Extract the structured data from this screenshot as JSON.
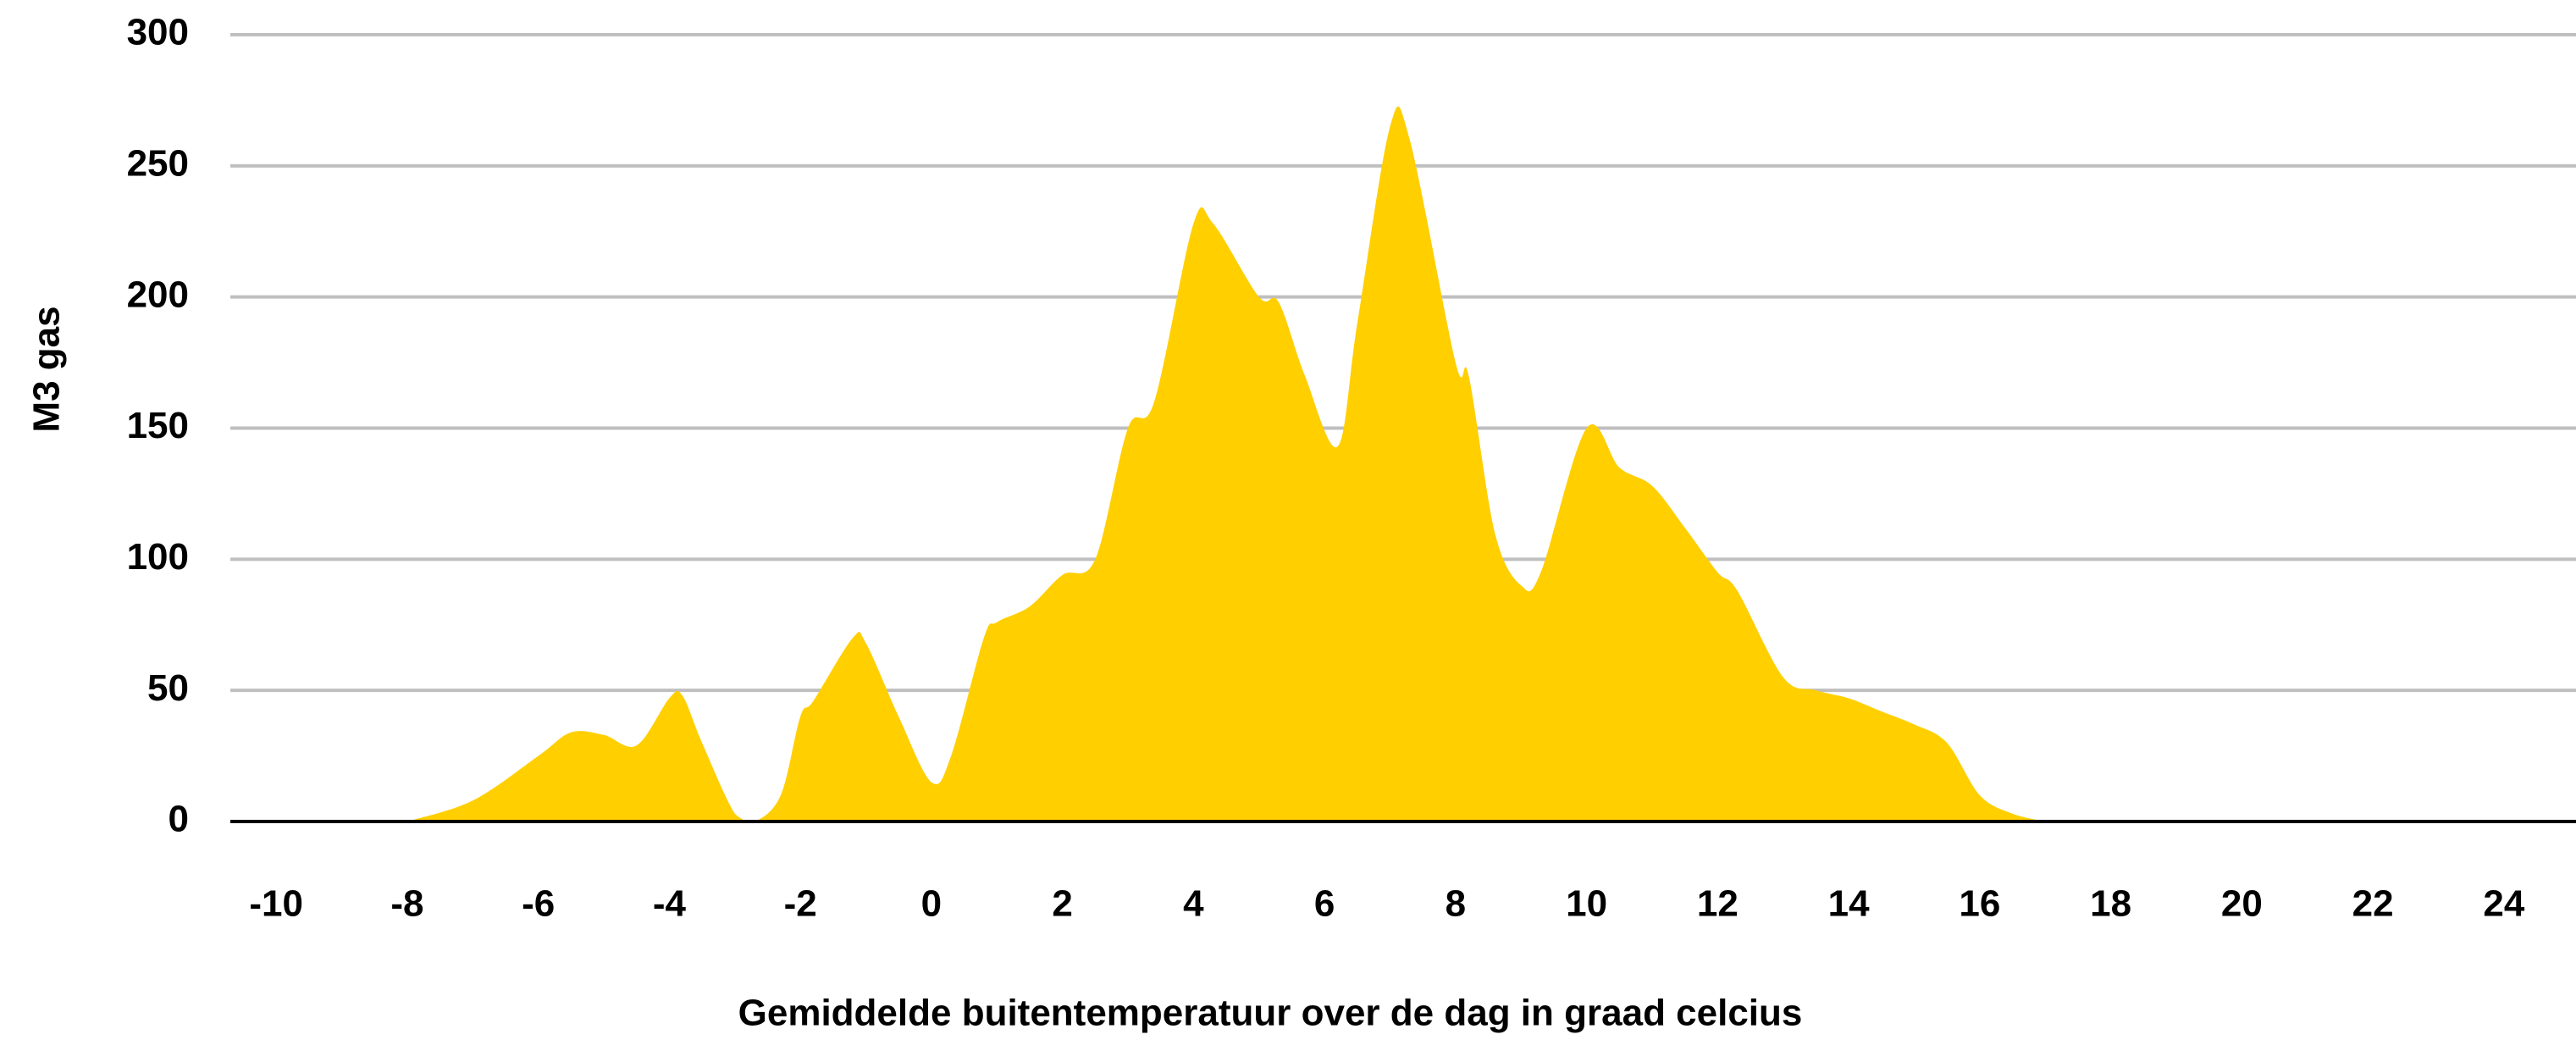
{
  "chart_data": {
    "type": "area",
    "x_label": "Gemiddelde buitentemperatuur over de dag in graad celcius",
    "y_label": "M3 gas",
    "x": [
      -8,
      -7,
      -6,
      -5.5,
      -5,
      -4.5,
      -4,
      -3.8,
      -3.5,
      -3,
      -2.7,
      -2.3,
      -2,
      -1.8,
      -1.2,
      -1,
      -0.5,
      0,
      0.3,
      0.8,
      1,
      1.5,
      2,
      2.5,
      3,
      3.4,
      4,
      4.3,
      5,
      5.3,
      5.7,
      6.2,
      6.5,
      7,
      7.3,
      8,
      8.2,
      8.6,
      9,
      9.3,
      10,
      10.5,
      11,
      11.5,
      12,
      12.3,
      13,
      13.5,
      14,
      14.5,
      15,
      15.5,
      16,
      16.5,
      17
    ],
    "series": [
      {
        "color": "#ffcf00",
        "values": [
          0,
          8,
          25,
          34,
          33,
          29,
          47,
          48,
          30,
          3,
          0,
          10,
          40,
          46,
          70,
          68,
          40,
          15,
          25,
          70,
          76,
          82,
          94,
          100,
          150,
          160,
          228,
          228,
          200,
          198,
          170,
          143,
          190,
          265,
          260,
          175,
          170,
          110,
          90,
          95,
          150,
          135,
          128,
          112,
          95,
          88,
          55,
          50,
          47,
          42,
          37,
          30,
          10,
          3,
          0
        ]
      }
    ],
    "xlim": [
      -10.7,
      25.1
    ],
    "xticks": [
      -10,
      -8,
      -6,
      -4,
      -2,
      0,
      2,
      4,
      6,
      8,
      10,
      12,
      14,
      16,
      18,
      20,
      22,
      24
    ],
    "ylim": [
      0,
      300
    ],
    "yticks": [
      0,
      50,
      100,
      150,
      200,
      250,
      300
    ],
    "grid": true
  }
}
